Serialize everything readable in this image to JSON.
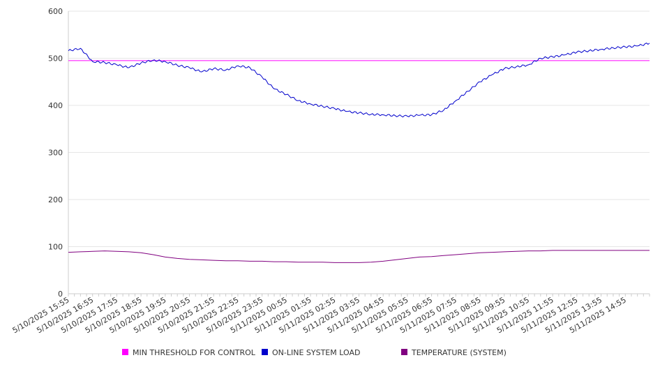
{
  "chart_data": {
    "type": "line",
    "title": "",
    "xlabel": "",
    "ylabel": "",
    "ylim": [
      0,
      600
    ],
    "grid": true,
    "legend_position": "bottom",
    "y_ticks": [
      0,
      100,
      200,
      300,
      400,
      500,
      600
    ],
    "x_tick_labels": [
      "5/10/2025 15:55",
      "5/10/2025 16:55",
      "5/10/2025 17:55",
      "5/10/2025 18:55",
      "5/10/2025 19:55",
      "5/10/2025 20:55",
      "5/10/2025 21:55",
      "5/10/2025 22:55",
      "5/10/2025 23:55",
      "5/11/2025 00:55",
      "5/11/2025 01:55",
      "5/11/2025 02:55",
      "5/11/2025 03:55",
      "5/11/2025 04:55",
      "5/11/2025 05:55",
      "5/11/2025 06:55",
      "5/11/2025 07:55",
      "5/11/2025 08:55",
      "5/11/2025 09:55",
      "5/11/2025 10:55",
      "5/11/2025 11:55",
      "5/11/2025 12:55",
      "5/11/2025 13:55",
      "5/11/2025 14:55"
    ],
    "x_hours": [
      0,
      0.5,
      1,
      1.5,
      2,
      2.5,
      3,
      3.5,
      4,
      4.5,
      5,
      5.5,
      6,
      6.5,
      7,
      7.5,
      8,
      8.5,
      9,
      9.5,
      10,
      10.5,
      11,
      11.5,
      12,
      12.5,
      13,
      13.5,
      14,
      14.5,
      15,
      15.5,
      16,
      16.5,
      17,
      17.5,
      18,
      18.5,
      19,
      19.5,
      20,
      20.5,
      21,
      21.5,
      22,
      22.5,
      23,
      23.5,
      24
    ],
    "series": [
      {
        "name": "MIN THRESHOLD FOR CONTROL",
        "color": "#ff00ff",
        "values": [
          495,
          495,
          495,
          495,
          495,
          495,
          495,
          495,
          495,
          495,
          495,
          495,
          495,
          495,
          495,
          495,
          495,
          495,
          495,
          495,
          495,
          495,
          495,
          495,
          495,
          495,
          495,
          495,
          495,
          495,
          495,
          495,
          495,
          495,
          495,
          495,
          495,
          495,
          495,
          495,
          495,
          495,
          495,
          495,
          495,
          495,
          495,
          495,
          495
        ]
      },
      {
        "name": "ON-LINE SYSTEM LOAD",
        "color": "#0000cc",
        "values": [
          516,
          521,
          493,
          491,
          486,
          480,
          490,
          496,
          493,
          485,
          480,
          471,
          478,
          475,
          484,
          480,
          460,
          435,
          423,
          410,
          403,
          398,
          393,
          387,
          384,
          381,
          380,
          378,
          377,
          379,
          380,
          390,
          410,
          430,
          450,
          465,
          478,
          482,
          486,
          500,
          503,
          507,
          513,
          516,
          519,
          522,
          524,
          526,
          532
        ]
      },
      {
        "name": "TEMPERATURE (SYSTEM)",
        "color": "#800080",
        "values": [
          88,
          89,
          90,
          91,
          90,
          89,
          87,
          83,
          78,
          75,
          73,
          72,
          71,
          70,
          70,
          69,
          69,
          68,
          68,
          67,
          67,
          67,
          66,
          66,
          66,
          67,
          69,
          72,
          75,
          78,
          79,
          81,
          83,
          85,
          87,
          88,
          89,
          90,
          91,
          91,
          92,
          92,
          92,
          92,
          92,
          92,
          92,
          92,
          92
        ]
      }
    ]
  }
}
